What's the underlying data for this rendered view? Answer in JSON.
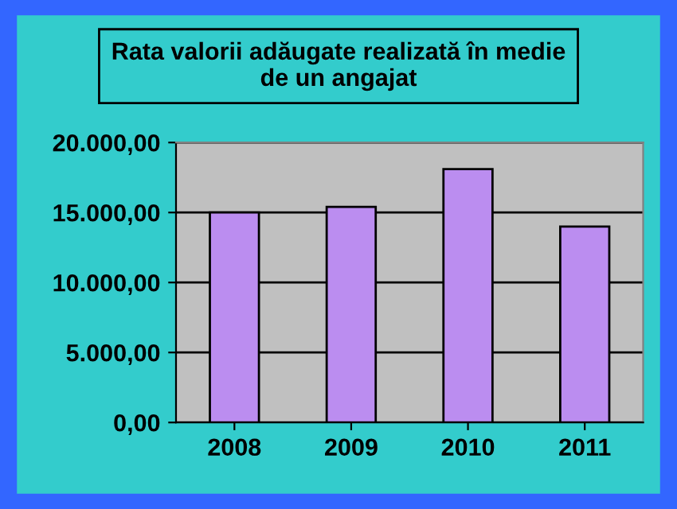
{
  "chart_data": {
    "type": "bar",
    "title": "Rata valorii adăugate realizată în medie\nde un angajat",
    "categories": [
      "2008",
      "2009",
      "2010",
      "2011"
    ],
    "values": [
      15000,
      15400,
      18100,
      14000
    ],
    "color": "#bb8df0",
    "ylim": [
      0,
      20000
    ],
    "yticks": [
      {
        "value": 0,
        "label": "0,00"
      },
      {
        "value": 5000,
        "label": "5.000,00"
      },
      {
        "value": 10000,
        "label": "10.000,00"
      },
      {
        "value": 15000,
        "label": "15.000,00"
      },
      {
        "value": 20000,
        "label": "20.000,00"
      }
    ],
    "grid": "y"
  }
}
